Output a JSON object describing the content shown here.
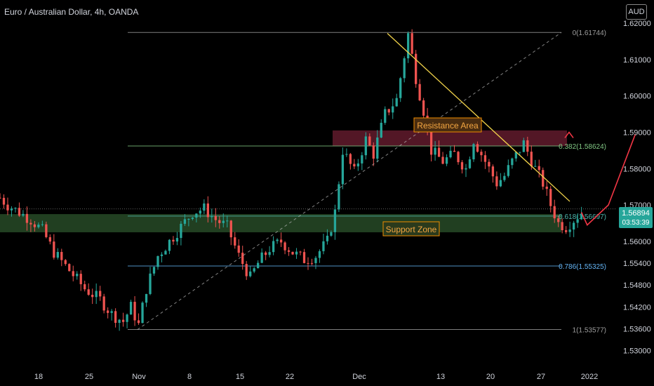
{
  "header": {
    "title": "Euro / Australian Dollar, 4h, OANDA",
    "currency_button": "AUD"
  },
  "price_tag": {
    "price": "1.56894",
    "countdown": "03:53:39"
  },
  "annotations": {
    "resistance": "Resistance Area",
    "support": "Support Zone"
  },
  "fib_levels": [
    {
      "label": "0(1.61744)",
      "price": 1.61744,
      "color": "#9e9e9e"
    },
    {
      "label": "0.382(1.58624)",
      "price": 1.58624,
      "color": "#81c784"
    },
    {
      "label": "0.618(1.56697)",
      "price": 1.56697,
      "color": "#4db6ac"
    },
    {
      "label": "0.786(1.55325)",
      "price": 1.55325,
      "color": "#64b5f6"
    },
    {
      "label": "1(1.53577)",
      "price": 1.53577,
      "color": "#9e9e9e"
    }
  ],
  "colors": {
    "up": "#26a69a",
    "down": "#ef5350",
    "background": "#000000",
    "trendline": "#f0d24a",
    "arrow": "#f23645"
  },
  "chart_data": {
    "type": "candlestick",
    "y_ticks": [
      "1.62000",
      "1.61000",
      "1.60000",
      "1.59000",
      "1.58000",
      "1.57000",
      "1.56000",
      "1.55400",
      "1.54800",
      "1.54200",
      "1.53600",
      "1.53000"
    ],
    "x_ticks": [
      "18",
      "25",
      "Nov",
      "8",
      "15",
      "22",
      "Dec",
      "13",
      "20",
      "27",
      "2022"
    ],
    "ylim": [
      1.527,
      1.6225
    ],
    "resistance_zone": [
      1.5862,
      1.5905
    ],
    "support_zone": [
      1.5625,
      1.5675
    ],
    "trend_path": [
      {
        "t": 0,
        "p": 1.572
      },
      {
        "t": 2,
        "p": 1.57
      },
      {
        "t": 5,
        "p": 1.568
      },
      {
        "t": 8,
        "p": 1.566
      },
      {
        "t": 11,
        "p": 1.563
      },
      {
        "t": 14,
        "p": 1.557
      },
      {
        "t": 18,
        "p": 1.552
      },
      {
        "t": 22,
        "p": 1.547
      },
      {
        "t": 26,
        "p": 1.544
      },
      {
        "t": 29,
        "p": 1.54
      },
      {
        "t": 32,
        "p": 1.538
      },
      {
        "t": 34,
        "p": 1.542
      },
      {
        "t": 36,
        "p": 1.537
      },
      {
        "t": 38,
        "p": 1.547
      },
      {
        "t": 41,
        "p": 1.556
      },
      {
        "t": 44,
        "p": 1.56
      },
      {
        "t": 47,
        "p": 1.564
      },
      {
        "t": 50,
        "p": 1.568
      },
      {
        "t": 53,
        "p": 1.569
      },
      {
        "t": 56,
        "p": 1.566
      },
      {
        "t": 59,
        "p": 1.564
      },
      {
        "t": 62,
        "p": 1.556
      },
      {
        "t": 65,
        "p": 1.55
      },
      {
        "t": 67,
        "p": 1.554
      },
      {
        "t": 70,
        "p": 1.558
      },
      {
        "t": 73,
        "p": 1.56
      },
      {
        "t": 76,
        "p": 1.557
      },
      {
        "t": 79,
        "p": 1.555
      },
      {
        "t": 82,
        "p": 1.556
      },
      {
        "t": 85,
        "p": 1.56
      },
      {
        "t": 87,
        "p": 1.568
      },
      {
        "t": 89,
        "p": 1.585
      },
      {
        "t": 92,
        "p": 1.579
      },
      {
        "t": 95,
        "p": 1.588
      },
      {
        "t": 97,
        "p": 1.584
      },
      {
        "t": 100,
        "p": 1.595
      },
      {
        "t": 103,
        "p": 1.599
      },
      {
        "t": 105,
        "p": 1.611
      },
      {
        "t": 106,
        "p": 1.617
      },
      {
        "t": 108,
        "p": 1.605
      },
      {
        "t": 110,
        "p": 1.596
      },
      {
        "t": 112,
        "p": 1.585
      },
      {
        "t": 115,
        "p": 1.582
      },
      {
        "t": 118,
        "p": 1.584
      },
      {
        "t": 121,
        "p": 1.58
      },
      {
        "t": 123,
        "p": 1.588
      },
      {
        "t": 126,
        "p": 1.582
      },
      {
        "t": 129,
        "p": 1.576
      },
      {
        "t": 131,
        "p": 1.578
      },
      {
        "t": 133,
        "p": 1.582
      },
      {
        "t": 136,
        "p": 1.587
      },
      {
        "t": 139,
        "p": 1.58
      },
      {
        "t": 141,
        "p": 1.576
      },
      {
        "t": 143,
        "p": 1.57
      },
      {
        "t": 145,
        "p": 1.565
      },
      {
        "t": 147,
        "p": 1.564
      },
      {
        "t": 149,
        "p": 1.566
      },
      {
        "t": 151,
        "p": 1.568
      }
    ]
  }
}
